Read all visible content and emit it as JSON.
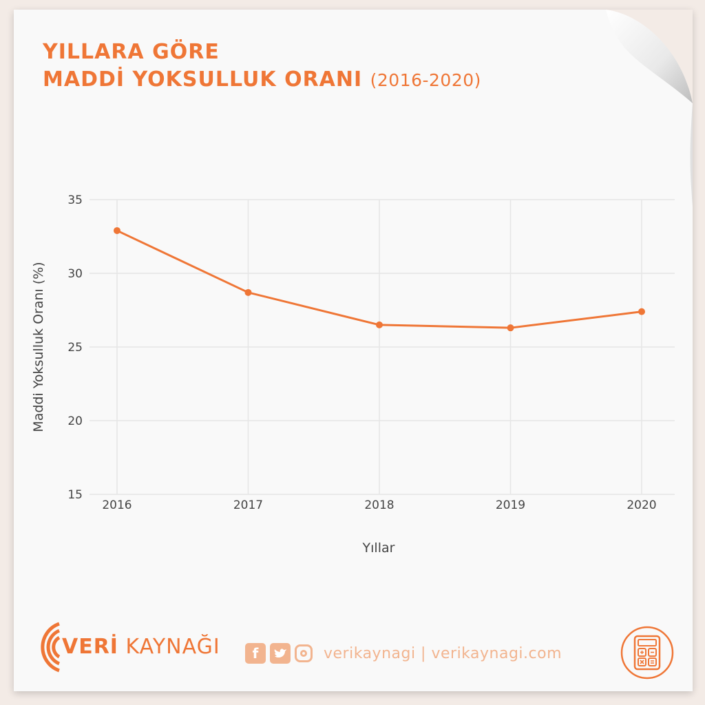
{
  "title": {
    "line1": "YILLARA GÖRE",
    "line2": "MADDİ YOKSULLUK ORANI",
    "range": "(2016-2020)"
  },
  "chart_data": {
    "type": "line",
    "x": [
      "2016",
      "2017",
      "2018",
      "2019",
      "2020"
    ],
    "series": [
      {
        "values": [
          32.9,
          28.7,
          26.5,
          26.3,
          27.4
        ],
        "color": "#ef7636"
      }
    ],
    "xlabel": "Yıllar",
    "ylabel": "Maddi Yoksulluk Oranı (%)",
    "ylim": [
      15,
      35
    ],
    "yticks": [
      15,
      20,
      25,
      30,
      35
    ],
    "grid": true
  },
  "footer": {
    "brand_bold": "VERİ",
    "brand_rest": " KAYNAĞI",
    "social_text": "verikaynagi | verikaynagi.com",
    "facebook_icon": "facebook-icon",
    "twitter_icon": "twitter-icon",
    "instagram_icon": "instagram-icon",
    "calculator_icon": "calculator-icon",
    "accent_color": "#ef7636"
  }
}
